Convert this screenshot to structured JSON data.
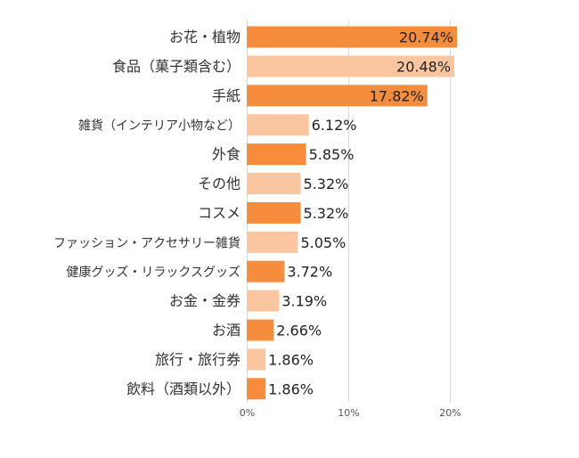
{
  "chart_data": {
    "type": "bar",
    "orientation": "horizontal",
    "categories": [
      "お花・植物",
      "食品（菓子類含む）",
      "手紙",
      "雑貨（インテリア小物など）",
      "外食",
      "その他",
      "コスメ",
      "ファッション・アクセサリー雑貨",
      "健康グッズ・リラックスグッズ",
      "お金・金券",
      "お酒",
      "旅行・旅行券",
      "飲料（酒類以外）"
    ],
    "values": [
      20.74,
      20.48,
      17.82,
      6.12,
      5.85,
      5.32,
      5.32,
      5.05,
      3.72,
      3.19,
      2.66,
      1.86,
      1.86
    ],
    "value_labels": [
      "20.74%",
      "20.48%",
      "17.82%",
      "6.12%",
      "5.85%",
      "5.32%",
      "5.32%",
      "5.05%",
      "3.72%",
      "3.19%",
      "2.66%",
      "1.86%",
      "1.86%"
    ],
    "tick_values": [
      0,
      10,
      20
    ],
    "tick_labels": [
      "0%",
      "10%",
      "20%"
    ],
    "xlim": [
      0,
      20.74
    ],
    "grid": true,
    "legend": "none",
    "colors": [
      "#f58d3d",
      "#f9c6a0"
    ]
  }
}
